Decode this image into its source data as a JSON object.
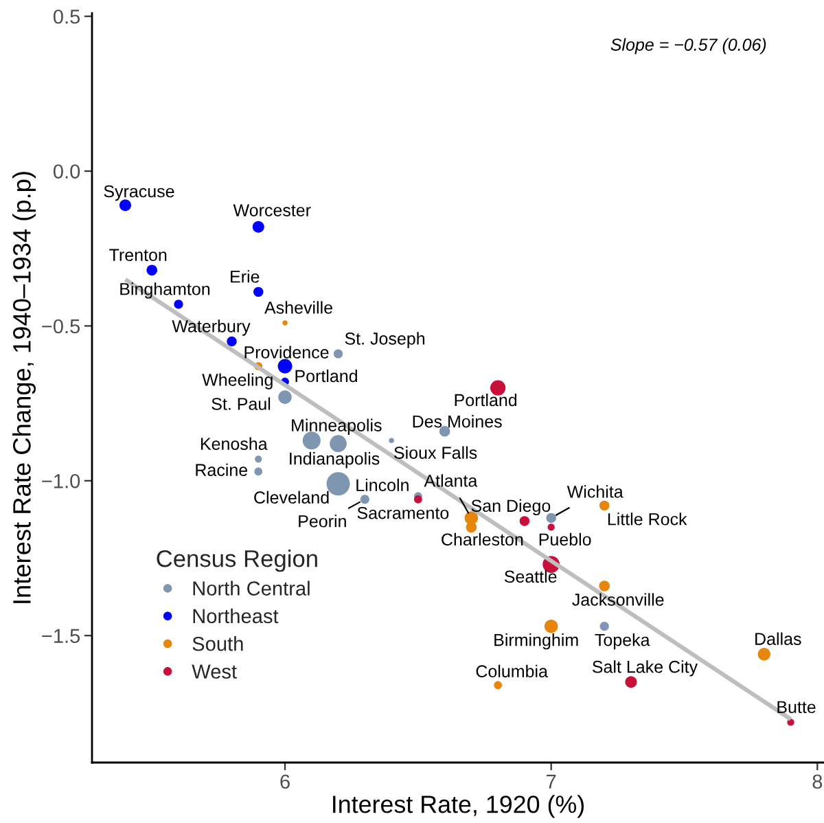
{
  "chart_data": {
    "type": "bubble",
    "xlabel": "Interest Rate, 1920 (%)",
    "ylabel": "Interest Rate Change, 1940–1934 (p.p)",
    "legend_title": "Census Region",
    "xlim": [
      5.275,
      8.025
    ],
    "xticks": [
      6,
      7,
      8
    ],
    "ylim": [
      -1.91,
      0.51
    ],
    "yticks": [
      {
        "value": -1.5,
        "label": "−1.5"
      },
      {
        "value": -1.0,
        "label": "−1.0"
      },
      {
        "value": -0.5,
        "label": "−0.5"
      },
      {
        "value": 0.0,
        "label": "0.0"
      },
      0.5
    ],
    "legend": "bottom left",
    "marker": "circle",
    "series": [
      {
        "name": "North Central",
        "color": "#7f96b1",
        "x": [
          6.2,
          6.0,
          6.1,
          6.2,
          6.4,
          6.6,
          5.9,
          5.9,
          6.2,
          6.5,
          6.3,
          7.0,
          7.2
        ],
        "values": [
          -0.59,
          -0.73,
          -0.87,
          -0.88,
          -0.87,
          -0.84,
          -0.93,
          -0.97,
          -1.01,
          -1.05,
          -1.06,
          -1.12,
          -1.47
        ],
        "sizes": [
          0.15,
          0.33,
          0.59,
          0.53,
          0.05,
          0.21,
          0.09,
          0.12,
          1,
          0.12,
          0.15,
          0.18,
          0.15
        ]
      },
      {
        "name": "Northeast",
        "color": "#0000ff",
        "x": [
          5.4,
          5.9,
          5.5,
          5.9,
          5.6,
          5.8,
          6.0,
          6.0
        ],
        "values": [
          -0.11,
          -0.18,
          -0.32,
          -0.39,
          -0.43,
          -0.55,
          -0.63,
          -0.68
        ],
        "sizes": [
          0.25,
          0.25,
          0.21,
          0.18,
          0.15,
          0.18,
          0.38,
          0.12
        ]
      },
      {
        "name": "South",
        "color": "#e6860d",
        "x": [
          6.0,
          5.9,
          6.7,
          6.7,
          7.2,
          7.2,
          7.0,
          7.8,
          6.8
        ],
        "values": [
          -0.49,
          -0.63,
          -1.12,
          -1.15,
          -1.08,
          -1.34,
          -1.47,
          -1.56,
          -1.66
        ],
        "sizes": [
          0.05,
          0.12,
          0.33,
          0.21,
          0.18,
          0.21,
          0.33,
          0.29,
          0.12
        ]
      },
      {
        "name": "West",
        "color": "#c8103a",
        "x": [
          6.8,
          6.5,
          6.9,
          7.0,
          7.0,
          7.3,
          7.9
        ],
        "values": [
          -0.7,
          -1.06,
          -1.13,
          -1.15,
          -1.27,
          -1.65,
          -1.78
        ],
        "sizes": [
          0.43,
          0.12,
          0.18,
          0.09,
          0.53,
          0.25,
          0.09
        ]
      },
      {
        "type": "line",
        "marker": "none",
        "color": "#bebebe",
        "x": [
          5.4,
          7.9
        ],
        "values": [
          -0.35,
          -1.77
        ]
      }
    ],
    "annotations": [
      {
        "text": "St. Joseph",
        "x": 6.2,
        "y": -0.59
      },
      {
        "text": "St. Paul",
        "x": 6.0,
        "y": -0.73
      },
      {
        "text": "Minneapolis",
        "x": 6.1,
        "y": -0.87
      },
      {
        "text": "Indianapolis",
        "x": 6.2,
        "y": -0.88
      },
      {
        "text": "Sioux Falls",
        "x": 6.4,
        "y": -0.87
      },
      {
        "text": "Des Moines",
        "x": 6.6,
        "y": -0.84
      },
      {
        "text": "Kenosha",
        "x": 5.9,
        "y": -0.93
      },
      {
        "text": "Racine",
        "x": 5.9,
        "y": -0.97
      },
      {
        "text": "Cleveland",
        "x": 6.2,
        "y": -1.01
      },
      {
        "text": "Lincoln",
        "x": 6.5,
        "y": -1.05
      },
      {
        "text": "Peorin",
        "x": 6.3,
        "y": -1.06
      },
      {
        "text": "Wichita",
        "x": 7.0,
        "y": -1.12
      },
      {
        "text": "Topeka",
        "x": 7.2,
        "y": -1.47
      },
      {
        "text": "Syracuse",
        "x": 5.4,
        "y": -0.11
      },
      {
        "text": "Worcester",
        "x": 5.9,
        "y": -0.18
      },
      {
        "text": "Trenton",
        "x": 5.5,
        "y": -0.32
      },
      {
        "text": "Erie",
        "x": 5.9,
        "y": -0.39
      },
      {
        "text": "Binghamton",
        "x": 5.6,
        "y": -0.43
      },
      {
        "text": "Waterbury",
        "x": 5.8,
        "y": -0.55
      },
      {
        "text": "Providence",
        "x": 6.0,
        "y": -0.63
      },
      {
        "text": "Portland",
        "x": 6.0,
        "y": -0.68
      },
      {
        "text": "Asheville",
        "x": 6.0,
        "y": -0.49
      },
      {
        "text": "Wheeling",
        "x": 5.9,
        "y": -0.63
      },
      {
        "text": "Atlanta",
        "x": 6.7,
        "y": -1.12
      },
      {
        "text": "Charleston",
        "x": 6.7,
        "y": -1.15
      },
      {
        "text": "Little Rock",
        "x": 7.2,
        "y": -1.08
      },
      {
        "text": "Jacksonville",
        "x": 7.2,
        "y": -1.34
      },
      {
        "text": "Birminghim",
        "x": 7.0,
        "y": -1.47
      },
      {
        "text": "Dallas",
        "x": 7.8,
        "y": -1.56
      },
      {
        "text": "Columbia",
        "x": 6.8,
        "y": -1.66
      },
      {
        "text": "Portland",
        "x": 6.8,
        "y": -0.7
      },
      {
        "text": "Sacramento",
        "x": 6.5,
        "y": -1.06
      },
      {
        "text": "San Diego",
        "x": 6.9,
        "y": -1.13
      },
      {
        "text": "Pueblo",
        "x": 7.0,
        "y": -1.15
      },
      {
        "text": "Seattle",
        "x": 7.0,
        "y": -1.27
      },
      {
        "text": "Salt Lake City",
        "x": 7.3,
        "y": -1.65
      },
      {
        "text": "Butte",
        "x": 7.9,
        "y": -1.78
      },
      "Slope = −0.57 (0.06)"
    ]
  }
}
